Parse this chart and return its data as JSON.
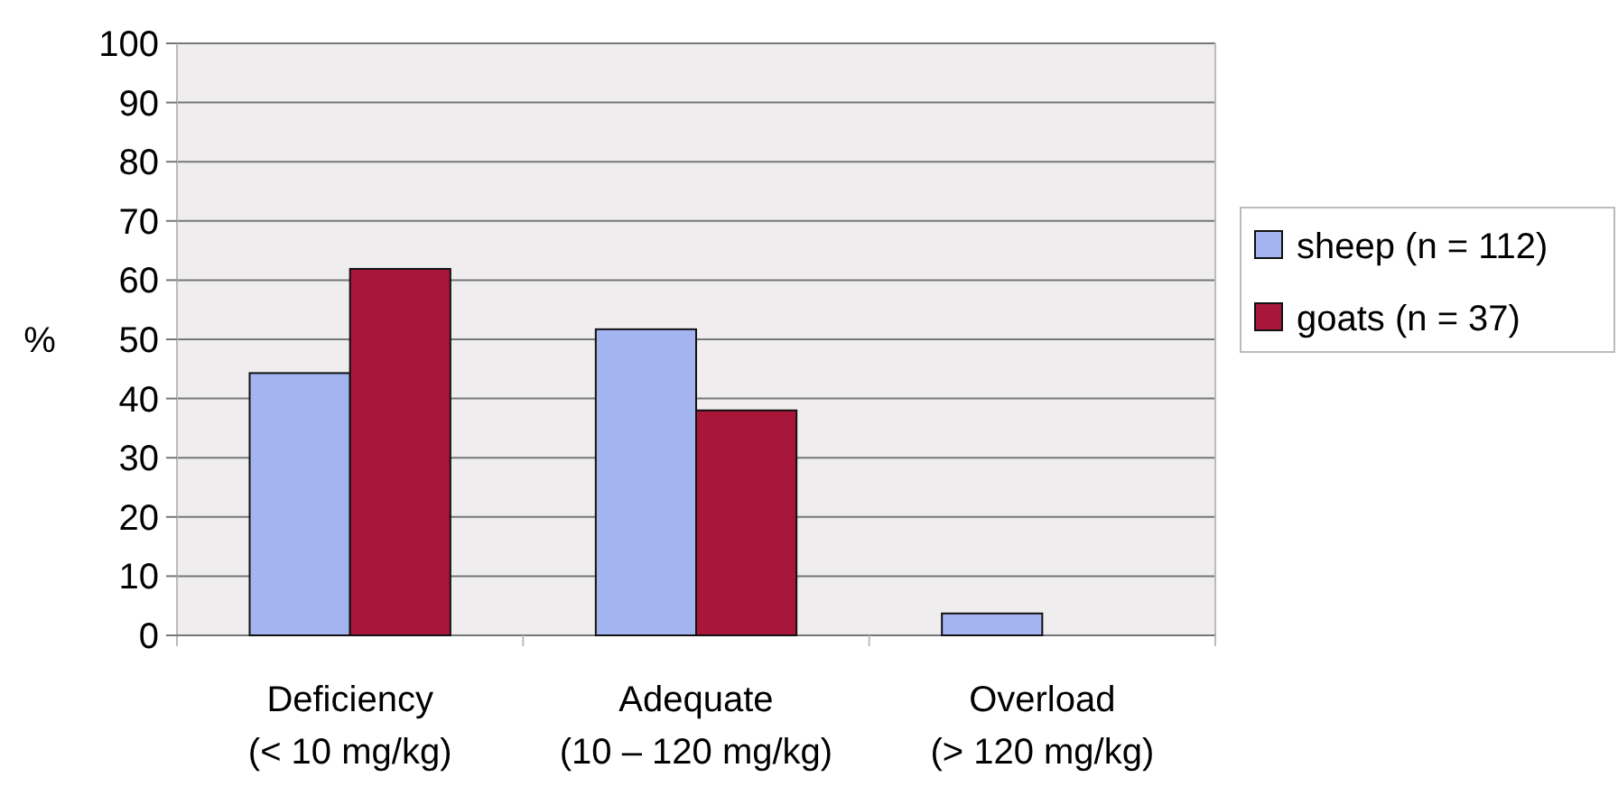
{
  "chart_data": {
    "type": "bar",
    "ylabel": "%",
    "categories": [
      "Deficiency\n(< 10 mg/kg)",
      "Adequate\n(10 – 120 mg/kg)",
      "Overload\n(> 120 mg/kg)"
    ],
    "series": [
      {
        "name": "sheep (n = 112)",
        "color": "#a3b4f0",
        "values": [
          44.3,
          51.7,
          3.7
        ]
      },
      {
        "name": "goats (n = 37)",
        "color": "#a8173a",
        "values": [
          61.9,
          38,
          0
        ]
      }
    ],
    "ylim": [
      0,
      100
    ],
    "yticks": [
      0,
      10,
      20,
      30,
      40,
      50,
      60,
      70,
      80,
      90,
      100
    ],
    "grid": "y",
    "legend": "right"
  }
}
